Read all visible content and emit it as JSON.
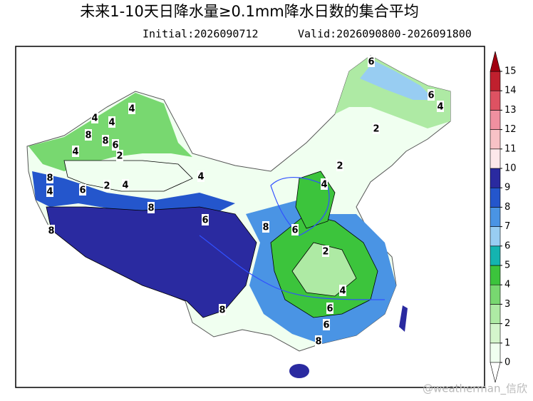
{
  "title": "未来1-10天日降水量≥0.1mm降水日数的集合平均",
  "initial": "Initial:2026090712",
  "valid": "Valid:2026090800-2026091800",
  "watermark": "@weatherman_信欣",
  "colorbar": {
    "ticks": [
      0,
      1,
      2,
      3,
      4,
      5,
      6,
      7,
      8,
      9,
      10,
      11,
      12,
      13,
      14,
      15
    ],
    "colors": [
      "#f0fff0",
      "#d4f5cc",
      "#aeeaa4",
      "#78d870",
      "#3cc43c",
      "#14b4b0",
      "#98cdf2",
      "#4a94e4",
      "#2456cc",
      "#2a2aa0",
      "#fde8ea",
      "#f8c2c6",
      "#f090a0",
      "#de5262",
      "#c0202e"
    ],
    "under_color": "#ffffff",
    "over_color": "#a00010"
  },
  "contour_labels": [
    6,
    6,
    4,
    4,
    4,
    4,
    8,
    8,
    6,
    4,
    2,
    2,
    2,
    4,
    8,
    4,
    6,
    2,
    4,
    8,
    6,
    4,
    8,
    6,
    8,
    2,
    4,
    6,
    6,
    8,
    8
  ]
}
